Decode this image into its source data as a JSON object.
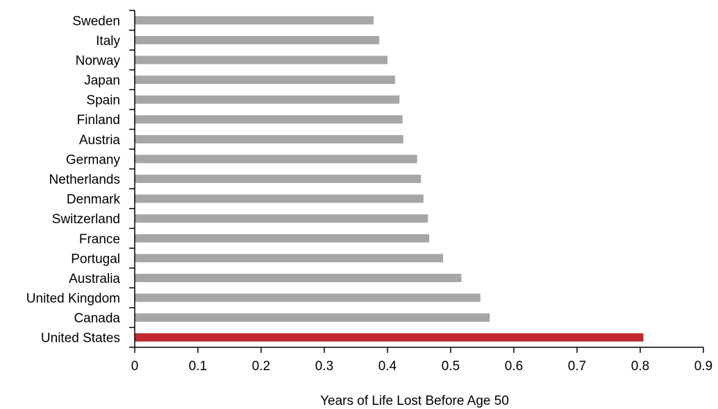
{
  "chart_data": {
    "type": "bar",
    "orientation": "horizontal",
    "categories": [
      "Sweden",
      "Italy",
      "Norway",
      "Japan",
      "Spain",
      "Finland",
      "Austria",
      "Germany",
      "Netherlands",
      "Denmark",
      "Switzerland",
      "France",
      "Portugal",
      "Australia",
      "United Kingdom",
      "Canada",
      "United States"
    ],
    "values": [
      0.378,
      0.387,
      0.4,
      0.412,
      0.419,
      0.424,
      0.425,
      0.447,
      0.453,
      0.457,
      0.464,
      0.466,
      0.488,
      0.517,
      0.547,
      0.562,
      0.805
    ],
    "xlim": [
      0,
      0.9
    ],
    "xticks": [
      0,
      0.1,
      0.2,
      0.3,
      0.4,
      0.5,
      0.6,
      0.7,
      0.8,
      0.9
    ],
    "xtick_labels": [
      "0",
      "0.1",
      "0.2",
      "0.3",
      "0.4",
      "0.5",
      "0.6",
      "0.7",
      "0.8",
      "0.9"
    ],
    "xlabel": "Years of Life Lost Before Age 50",
    "ylabel": "",
    "title": "",
    "grid": false,
    "legend": "none",
    "colors": {
      "default_bar": "#a6a6a6",
      "highlight_bar": "#c0282e",
      "axis": "#000000"
    },
    "highlight_category": "United States"
  }
}
